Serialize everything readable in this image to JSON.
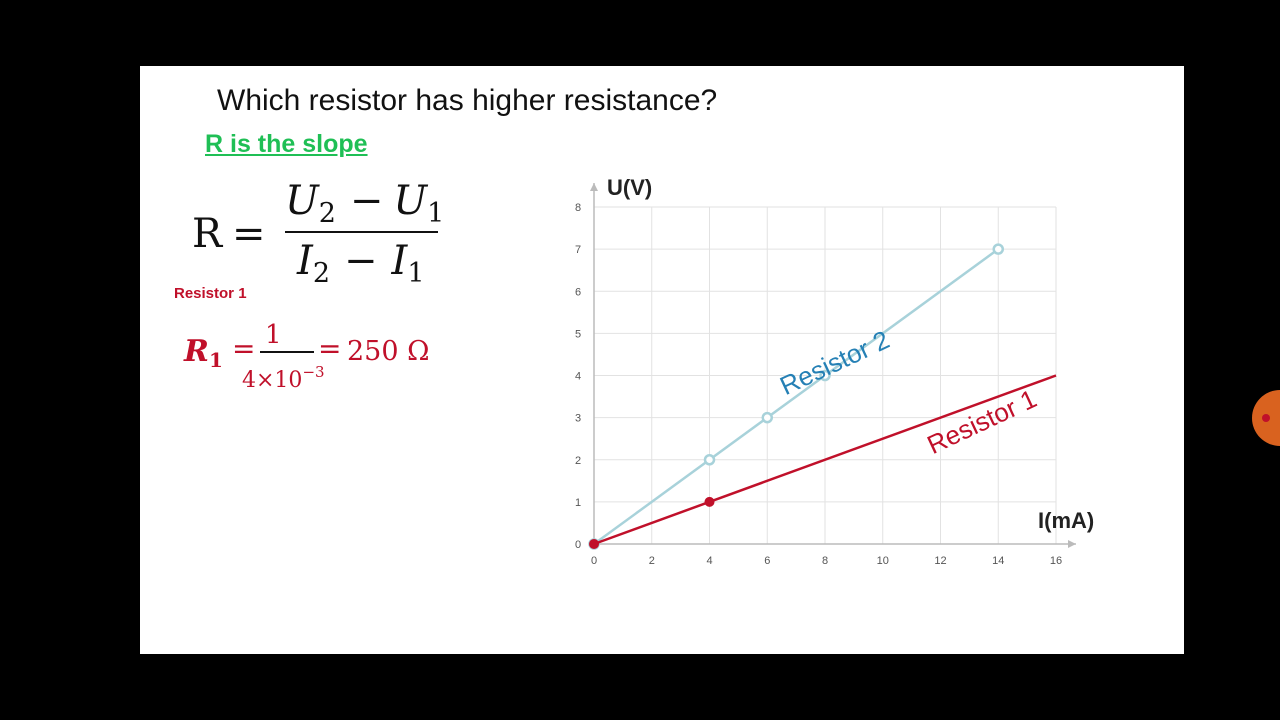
{
  "slide": {
    "question": "Which resistor has higher resistance?",
    "hint": "R is the slope",
    "formula": {
      "lhs": "R",
      "equals": "=",
      "numerator": [
        "U",
        "2",
        "−",
        "U",
        "1"
      ],
      "denominator": [
        "I",
        "2",
        "−",
        "I",
        "1"
      ]
    },
    "resistor1_label": "Resistor 1",
    "r1_calc": {
      "symbol": "R",
      "subscript": "1",
      "numerator": "1",
      "denominator_base": "4×10",
      "denominator_exp": "−3",
      "result": "250 Ω"
    }
  },
  "chart_data": {
    "type": "line",
    "xlabel": "I(mA)",
    "ylabel": "U(V)",
    "xlim": [
      0,
      16
    ],
    "ylim": [
      0,
      8
    ],
    "xticks": [
      0,
      2,
      4,
      6,
      8,
      10,
      12,
      14,
      16
    ],
    "yticks": [
      0,
      1,
      2,
      3,
      4,
      5,
      6,
      7,
      8
    ],
    "grid": true,
    "series": [
      {
        "name": "Resistor 2",
        "color": "#a8d2da",
        "label_color": "#2580b5",
        "marker": "open-circle",
        "line": [
          [
            0,
            0
          ],
          [
            14,
            7
          ]
        ],
        "points": [
          [
            0,
            0
          ],
          [
            4,
            2
          ],
          [
            6,
            3
          ],
          [
            8,
            4
          ],
          [
            14,
            7
          ]
        ]
      },
      {
        "name": "Resistor 1",
        "color": "#c0102a",
        "label_color": "#c0102a",
        "marker": "filled-dot",
        "line": [
          [
            0,
            0
          ],
          [
            16,
            4
          ]
        ],
        "points": [
          [
            0,
            0
          ],
          [
            4,
            1
          ]
        ]
      }
    ]
  },
  "colors": {
    "background": "#000000",
    "slide": "#ffffff",
    "hint": "#1fbf55",
    "accent_red": "#c0102a",
    "side_button": "#d9621f"
  }
}
